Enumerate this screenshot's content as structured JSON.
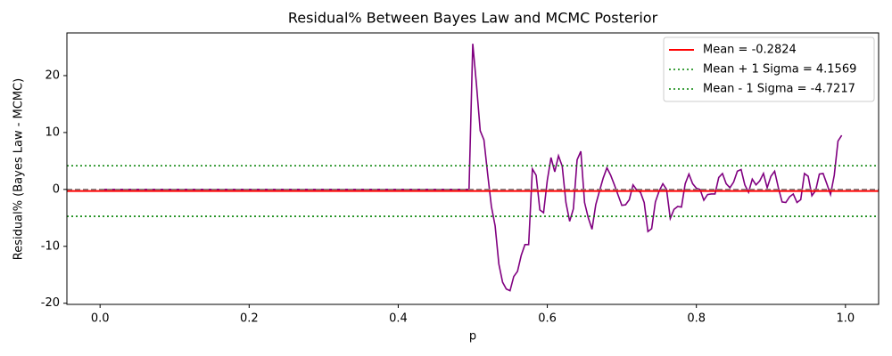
{
  "chart_data": {
    "type": "line",
    "title": "Residual% Between Bayes Law and MCMC Posterior",
    "xlabel": "p",
    "ylabel": "Residual% (Bayes Law - MCMC)",
    "x": [
      0.005,
      0.495,
      0.5,
      0.505,
      0.51,
      0.515,
      0.52,
      0.525,
      0.53,
      0.535,
      0.54,
      0.545,
      0.55,
      0.555,
      0.56,
      0.565,
      0.57,
      0.575,
      0.58,
      0.585,
      0.59,
      0.595,
      0.6,
      0.605,
      0.61,
      0.615,
      0.62,
      0.625,
      0.63,
      0.635,
      0.64,
      0.645,
      0.65,
      0.655,
      0.66,
      0.665,
      0.67,
      0.675,
      0.68,
      0.685,
      0.69,
      0.695,
      0.7,
      0.705,
      0.71,
      0.715,
      0.72,
      0.725,
      0.73,
      0.735,
      0.74,
      0.745,
      0.75,
      0.755,
      0.76,
      0.765,
      0.77,
      0.775,
      0.78,
      0.785,
      0.79,
      0.795,
      0.8,
      0.805,
      0.81,
      0.815,
      0.82,
      0.825,
      0.83,
      0.835,
      0.84,
      0.845,
      0.85,
      0.855,
      0.86,
      0.865,
      0.87,
      0.875,
      0.88,
      0.885,
      0.89,
      0.895,
      0.9,
      0.905,
      0.91,
      0.915,
      0.92,
      0.925,
      0.93,
      0.935,
      0.94,
      0.945,
      0.95,
      0.955,
      0.96,
      0.965,
      0.97,
      0.975,
      0.98,
      0.985,
      0.99,
      0.995
    ],
    "series": [
      {
        "color": "#800080",
        "values": [
          0,
          0,
          25.6,
          18.4,
          10.3,
          8.7,
          2.7,
          -3,
          -6.4,
          -13.1,
          -16.3,
          -17.5,
          -17.8,
          -15.3,
          -14.4,
          -11.6,
          -9.7,
          -9.7,
          3.6,
          2.5,
          -3.6,
          -4.1,
          1.6,
          5.6,
          3.1,
          5.9,
          4.1,
          -2.3,
          -5.6,
          -3.4,
          5.2,
          6.7,
          -2.3,
          -5,
          -7,
          -2.7,
          -0.3,
          2,
          3.8,
          2.5,
          0.8,
          -1,
          -2.8,
          -2.7,
          -1.8,
          0.8,
          -0.1,
          -0.5,
          -2.3,
          -7.4,
          -6.9,
          -2.2,
          -0.3,
          1,
          0,
          -5.1,
          -3.5,
          -3,
          -3.1,
          1,
          2.7,
          1,
          0.2,
          0,
          -1.9,
          -0.9,
          -0.8,
          -0.8,
          2.1,
          2.8,
          1,
          0.3,
          1.3,
          3.2,
          3.5,
          0.8,
          -0.5,
          1.8,
          0.8,
          1.5,
          2.8,
          0.3,
          2.3,
          3.2,
          0.3,
          -2.2,
          -2.3,
          -1.3,
          -0.8,
          -2.3,
          -1.8,
          2.8,
          2.3,
          -1.1,
          -0.2,
          2.7,
          2.8,
          1,
          -0.9,
          2.5,
          8.5,
          9.5
        ]
      }
    ],
    "hlines": [
      {
        "value": 0,
        "color": "#808080",
        "style": "dashed"
      },
      {
        "name": "Mean = -0.2824",
        "value": -0.2824,
        "color": "#ff0000",
        "style": "solid"
      },
      {
        "name": "Mean + 1 Sigma = 4.1569",
        "value": 4.1569,
        "color": "#008000",
        "style": "dotted"
      },
      {
        "name": "Mean - 1 Sigma = -4.7217",
        "value": -4.7217,
        "color": "#008000",
        "style": "dotted"
      }
    ],
    "xlim": [
      -0.0445,
      1.0445
    ],
    "ylim": [
      -20.2,
      27.5
    ],
    "xticks": [
      {
        "value": 0,
        "label": "0.0"
      },
      0.2,
      0.4,
      0.6,
      0.8,
      {
        "value": 1,
        "label": "1.0"
      }
    ],
    "yticks": [
      -20,
      -10,
      0,
      10,
      20
    ],
    "legend": "upper right"
  }
}
